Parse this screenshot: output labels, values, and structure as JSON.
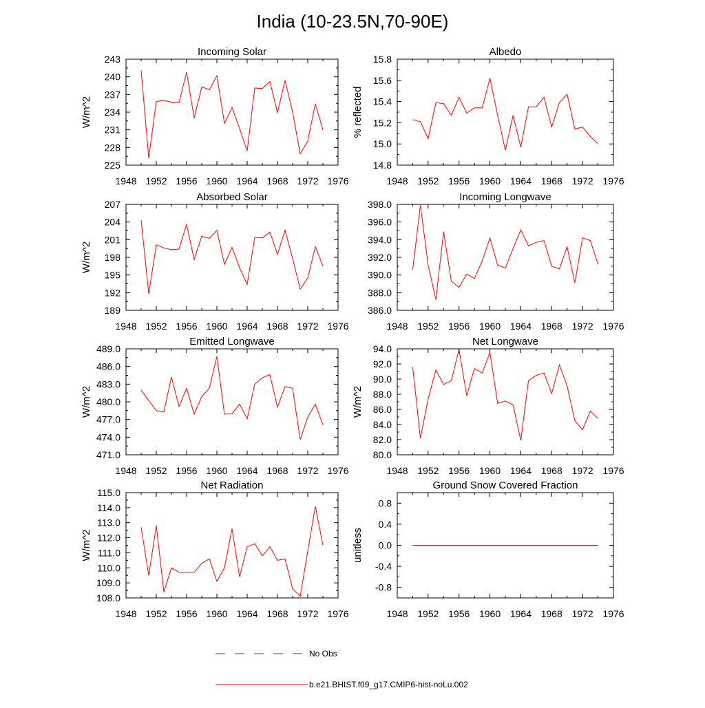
{
  "figure_title": "India (10-23.5N,70-90E)",
  "legend": [
    {
      "label": "No Obs",
      "color": "#3b3bb8",
      "style": "dashed"
    },
    {
      "label": "b.e21.BHIST.f09_g17.CMIP6-hist-noLu.002",
      "color": "#ff0000",
      "style": "solid"
    }
  ],
  "chart_data": [
    {
      "type": "line",
      "title": "Incoming Solar",
      "ylabel": "W/m^2",
      "xlim": [
        1948,
        1976
      ],
      "ylim": [
        225,
        243
      ],
      "xticks": [
        1948,
        1952,
        1956,
        1960,
        1964,
        1968,
        1972,
        1976
      ],
      "yticks": [
        225,
        228,
        231,
        234,
        237,
        240,
        243
      ],
      "ytick_labels": [
        "225",
        "228",
        "231",
        "234",
        "237",
        "240",
        "243"
      ],
      "series": [
        {
          "name": "b.e21.BHIST.f09_g17.CMIP6-hist-noLu.002",
          "x_start": 1950,
          "values": [
            241.1,
            226.2,
            235.8,
            236.0,
            235.7,
            235.6,
            240.8,
            233.0,
            238.3,
            237.8,
            240.2,
            232.1,
            234.8,
            231.2,
            227.4,
            238.1,
            238.0,
            239.2,
            233.9,
            239.4,
            234.0,
            226.9,
            229.1,
            235.4,
            231.0
          ]
        }
      ]
    },
    {
      "type": "line",
      "title": "Albedo",
      "ylabel": "% reflected",
      "xlim": [
        1948,
        1976
      ],
      "ylim": [
        14.8,
        15.8
      ],
      "xticks": [
        1948,
        1952,
        1956,
        1960,
        1964,
        1968,
        1972,
        1976
      ],
      "yticks": [
        14.8,
        15.0,
        15.2,
        15.4,
        15.6,
        15.8
      ],
      "ytick_labels": [
        "14.8",
        "15.0",
        "15.2",
        "15.4",
        "15.6",
        "15.8"
      ],
      "series": [
        {
          "name": "b.e21.BHIST.f09_g17.CMIP6-hist-noLu.002",
          "x_start": 1950,
          "values": [
            15.23,
            15.21,
            15.05,
            15.39,
            15.38,
            15.27,
            15.44,
            15.29,
            15.34,
            15.34,
            15.62,
            15.27,
            14.94,
            15.27,
            14.97,
            15.35,
            15.35,
            15.44,
            15.16,
            15.39,
            15.47,
            15.14,
            15.16,
            15.07,
            15.0
          ]
        }
      ]
    },
    {
      "type": "line",
      "title": "Absorbed Solar",
      "ylabel": "W/m^2",
      "xlim": [
        1948,
        1976
      ],
      "ylim": [
        189,
        207
      ],
      "xticks": [
        1948,
        1952,
        1956,
        1960,
        1964,
        1968,
        1972,
        1976
      ],
      "yticks": [
        189,
        192,
        195,
        198,
        201,
        204,
        207
      ],
      "ytick_labels": [
        "189",
        "192",
        "195",
        "198",
        "201",
        "204",
        "207"
      ],
      "series": [
        {
          "name": "b.e21.BHIST.f09_g17.CMIP6-hist-noLu.002",
          "x_start": 1950,
          "values": [
            204.3,
            191.8,
            200.1,
            199.6,
            199.3,
            199.4,
            203.6,
            197.6,
            201.6,
            201.2,
            202.6,
            196.8,
            199.7,
            196.2,
            193.4,
            201.4,
            201.3,
            202.3,
            198.5,
            202.6,
            197.8,
            192.6,
            194.5,
            199.8,
            196.5
          ]
        }
      ]
    },
    {
      "type": "line",
      "title": "Incoming Longwave",
      "ylabel": "",
      "xlim": [
        1948,
        1976
      ],
      "ylim": [
        386.0,
        398.0
      ],
      "xticks": [
        1948,
        1952,
        1956,
        1960,
        1964,
        1968,
        1972,
        1976
      ],
      "yticks": [
        386,
        388,
        390,
        392,
        394,
        396,
        398
      ],
      "ytick_labels": [
        "386.0",
        "388.0",
        "390.0",
        "392.0",
        "394.0",
        "396.0",
        "398.0"
      ],
      "series": [
        {
          "name": "b.e21.BHIST.f09_g17.CMIP6-hist-noLu.002",
          "x_start": 1950,
          "values": [
            390.6,
            397.9,
            391.1,
            387.2,
            394.9,
            389.3,
            388.6,
            390.1,
            389.6,
            391.6,
            394.2,
            391.1,
            390.8,
            393.0,
            395.1,
            393.3,
            393.7,
            393.9,
            391.0,
            390.7,
            393.2,
            389.1,
            394.2,
            393.9,
            391.2
          ]
        }
      ]
    },
    {
      "type": "line",
      "title": "Emitted Longwave",
      "ylabel": "W/m^2",
      "xlim": [
        1948,
        1976
      ],
      "ylim": [
        471.0,
        489.0
      ],
      "xticks": [
        1948,
        1952,
        1956,
        1960,
        1964,
        1968,
        1972,
        1976
      ],
      "yticks": [
        471,
        474,
        477,
        480,
        483,
        486,
        489
      ],
      "ytick_labels": [
        "471.0",
        "474.0",
        "477.0",
        "480.0",
        "483.0",
        "486.0",
        "489.0"
      ],
      "series": [
        {
          "name": "b.e21.BHIST.f09_g17.CMIP6-hist-noLu.002",
          "x_start": 1950,
          "values": [
            482.0,
            480.2,
            478.5,
            478.3,
            484.2,
            479.2,
            482.3,
            477.9,
            480.9,
            482.3,
            487.7,
            477.9,
            478.0,
            479.6,
            477.1,
            483.0,
            484.1,
            484.6,
            479.1,
            482.6,
            482.3,
            473.6,
            477.4,
            479.6,
            476.1
          ]
        }
      ]
    },
    {
      "type": "line",
      "title": "Net Longwave",
      "ylabel": "W/m^2",
      "xlim": [
        1948,
        1976
      ],
      "ylim": [
        80.0,
        94.0
      ],
      "xticks": [
        1948,
        1952,
        1956,
        1960,
        1964,
        1968,
        1972,
        1976
      ],
      "yticks": [
        80,
        82,
        84,
        86,
        88,
        90,
        92,
        94
      ],
      "ytick_labels": [
        "80.0",
        "82.0",
        "84.0",
        "86.0",
        "88.0",
        "90.0",
        "92.0",
        "94.0"
      ],
      "series": [
        {
          "name": "b.e21.BHIST.f09_g17.CMIP6-hist-noLu.002",
          "x_start": 1950,
          "values": [
            91.6,
            82.2,
            87.4,
            91.2,
            89.3,
            89.8,
            93.9,
            87.8,
            91.4,
            90.8,
            93.5,
            86.8,
            87.1,
            86.6,
            81.9,
            89.8,
            90.5,
            90.8,
            88.1,
            91.9,
            89.1,
            84.5,
            83.3,
            85.8,
            84.8
          ]
        }
      ]
    },
    {
      "type": "line",
      "title": "Net Radiation",
      "ylabel": "W/m^2",
      "xlim": [
        1948,
        1976
      ],
      "ylim": [
        108.0,
        115.0
      ],
      "xticks": [
        1948,
        1952,
        1956,
        1960,
        1964,
        1968,
        1972,
        1976
      ],
      "yticks": [
        108,
        109,
        110,
        111,
        112,
        113,
        114,
        115
      ],
      "ytick_labels": [
        "108.0",
        "109.0",
        "110.0",
        "111.0",
        "112.0",
        "113.0",
        "114.0",
        "115.0"
      ],
      "series": [
        {
          "name": "b.e21.BHIST.f09_g17.CMIP6-hist-noLu.002",
          "x_start": 1950,
          "values": [
            112.7,
            109.5,
            112.8,
            108.4,
            110.0,
            109.7,
            109.7,
            109.7,
            110.3,
            110.6,
            109.1,
            110.0,
            112.6,
            109.4,
            111.4,
            111.6,
            110.8,
            111.4,
            110.5,
            110.6,
            108.6,
            108.1,
            111.1,
            114.1,
            111.5
          ]
        }
      ]
    },
    {
      "type": "line",
      "title": "Ground Snow Covered Fraction",
      "ylabel": "unitless",
      "xlim": [
        1948,
        1976
      ],
      "ylim": [
        -1.0,
        1.0
      ],
      "xticks": [
        1948,
        1952,
        1956,
        1960,
        1964,
        1968,
        1972,
        1976
      ],
      "yticks": [
        -0.8,
        -0.4,
        0.0,
        0.4,
        0.8
      ],
      "ytick_labels": [
        "-0.8",
        "-0.4",
        "0.0",
        "0.4",
        "0.8"
      ],
      "series": [
        {
          "name": "b.e21.BHIST.f09_g17.CMIP6-hist-noLu.002",
          "x_start": 1950,
          "values": [
            0,
            0,
            0,
            0,
            0,
            0,
            0,
            0,
            0,
            0,
            0,
            0,
            0,
            0,
            0,
            0,
            0,
            0,
            0,
            0,
            0,
            0,
            0,
            0,
            0
          ]
        }
      ]
    }
  ]
}
